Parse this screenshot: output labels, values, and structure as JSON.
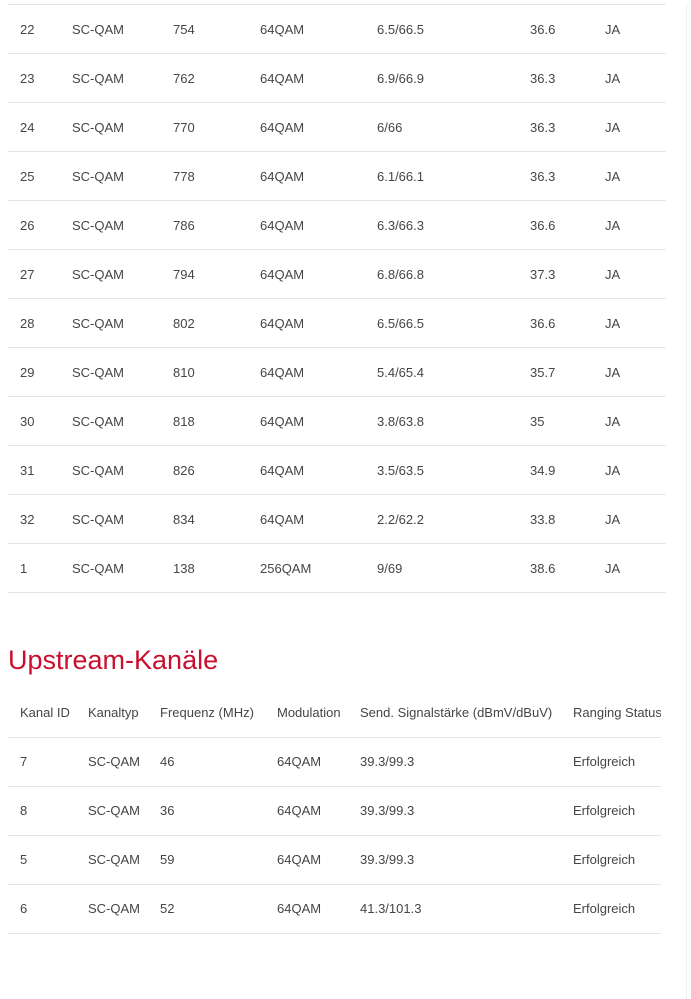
{
  "colors": {
    "heading_red": "#c8102e",
    "body_text": "#454545",
    "divider": "#e5e5e5"
  },
  "downstream_table": {
    "rows": [
      [
        "22",
        "SC-QAM",
        "754",
        "64QAM",
        "6.5/66.5",
        "36.6",
        "JA"
      ],
      [
        "23",
        "SC-QAM",
        "762",
        "64QAM",
        "6.9/66.9",
        "36.3",
        "JA"
      ],
      [
        "24",
        "SC-QAM",
        "770",
        "64QAM",
        "6/66",
        "36.3",
        "JA"
      ],
      [
        "25",
        "SC-QAM",
        "778",
        "64QAM",
        "6.1/66.1",
        "36.3",
        "JA"
      ],
      [
        "26",
        "SC-QAM",
        "786",
        "64QAM",
        "6.3/66.3",
        "36.6",
        "JA"
      ],
      [
        "27",
        "SC-QAM",
        "794",
        "64QAM",
        "6.8/66.8",
        "37.3",
        "JA"
      ],
      [
        "28",
        "SC-QAM",
        "802",
        "64QAM",
        "6.5/66.5",
        "36.6",
        "JA"
      ],
      [
        "29",
        "SC-QAM",
        "810",
        "64QAM",
        "5.4/65.4",
        "35.7",
        "JA"
      ],
      [
        "30",
        "SC-QAM",
        "818",
        "64QAM",
        "3.8/63.8",
        "35",
        "JA"
      ],
      [
        "31",
        "SC-QAM",
        "826",
        "64QAM",
        "3.5/63.5",
        "34.9",
        "JA"
      ],
      [
        "32",
        "SC-QAM",
        "834",
        "64QAM",
        "2.2/62.2",
        "33.8",
        "JA"
      ],
      [
        "1",
        "SC-QAM",
        "138",
        "256QAM",
        "9/69",
        "38.6",
        "JA"
      ]
    ]
  },
  "upstream": {
    "heading": "Upstream-Kanäle",
    "columns": [
      "Kanal ID",
      "Kanaltyp",
      "Frequenz (MHz)",
      "Modulation",
      "Send. Signalstärke (dBmV/dBuV)",
      "Ranging Status"
    ],
    "rows": [
      [
        "7",
        "SC-QAM",
        "46",
        "64QAM",
        "39.3/99.3",
        "Erfolgreich"
      ],
      [
        "8",
        "SC-QAM",
        "36",
        "64QAM",
        "39.3/99.3",
        "Erfolgreich"
      ],
      [
        "5",
        "SC-QAM",
        "59",
        "64QAM",
        "39.3/99.3",
        "Erfolgreich"
      ],
      [
        "6",
        "SC-QAM",
        "52",
        "64QAM",
        "41.3/101.3",
        "Erfolgreich"
      ]
    ]
  }
}
